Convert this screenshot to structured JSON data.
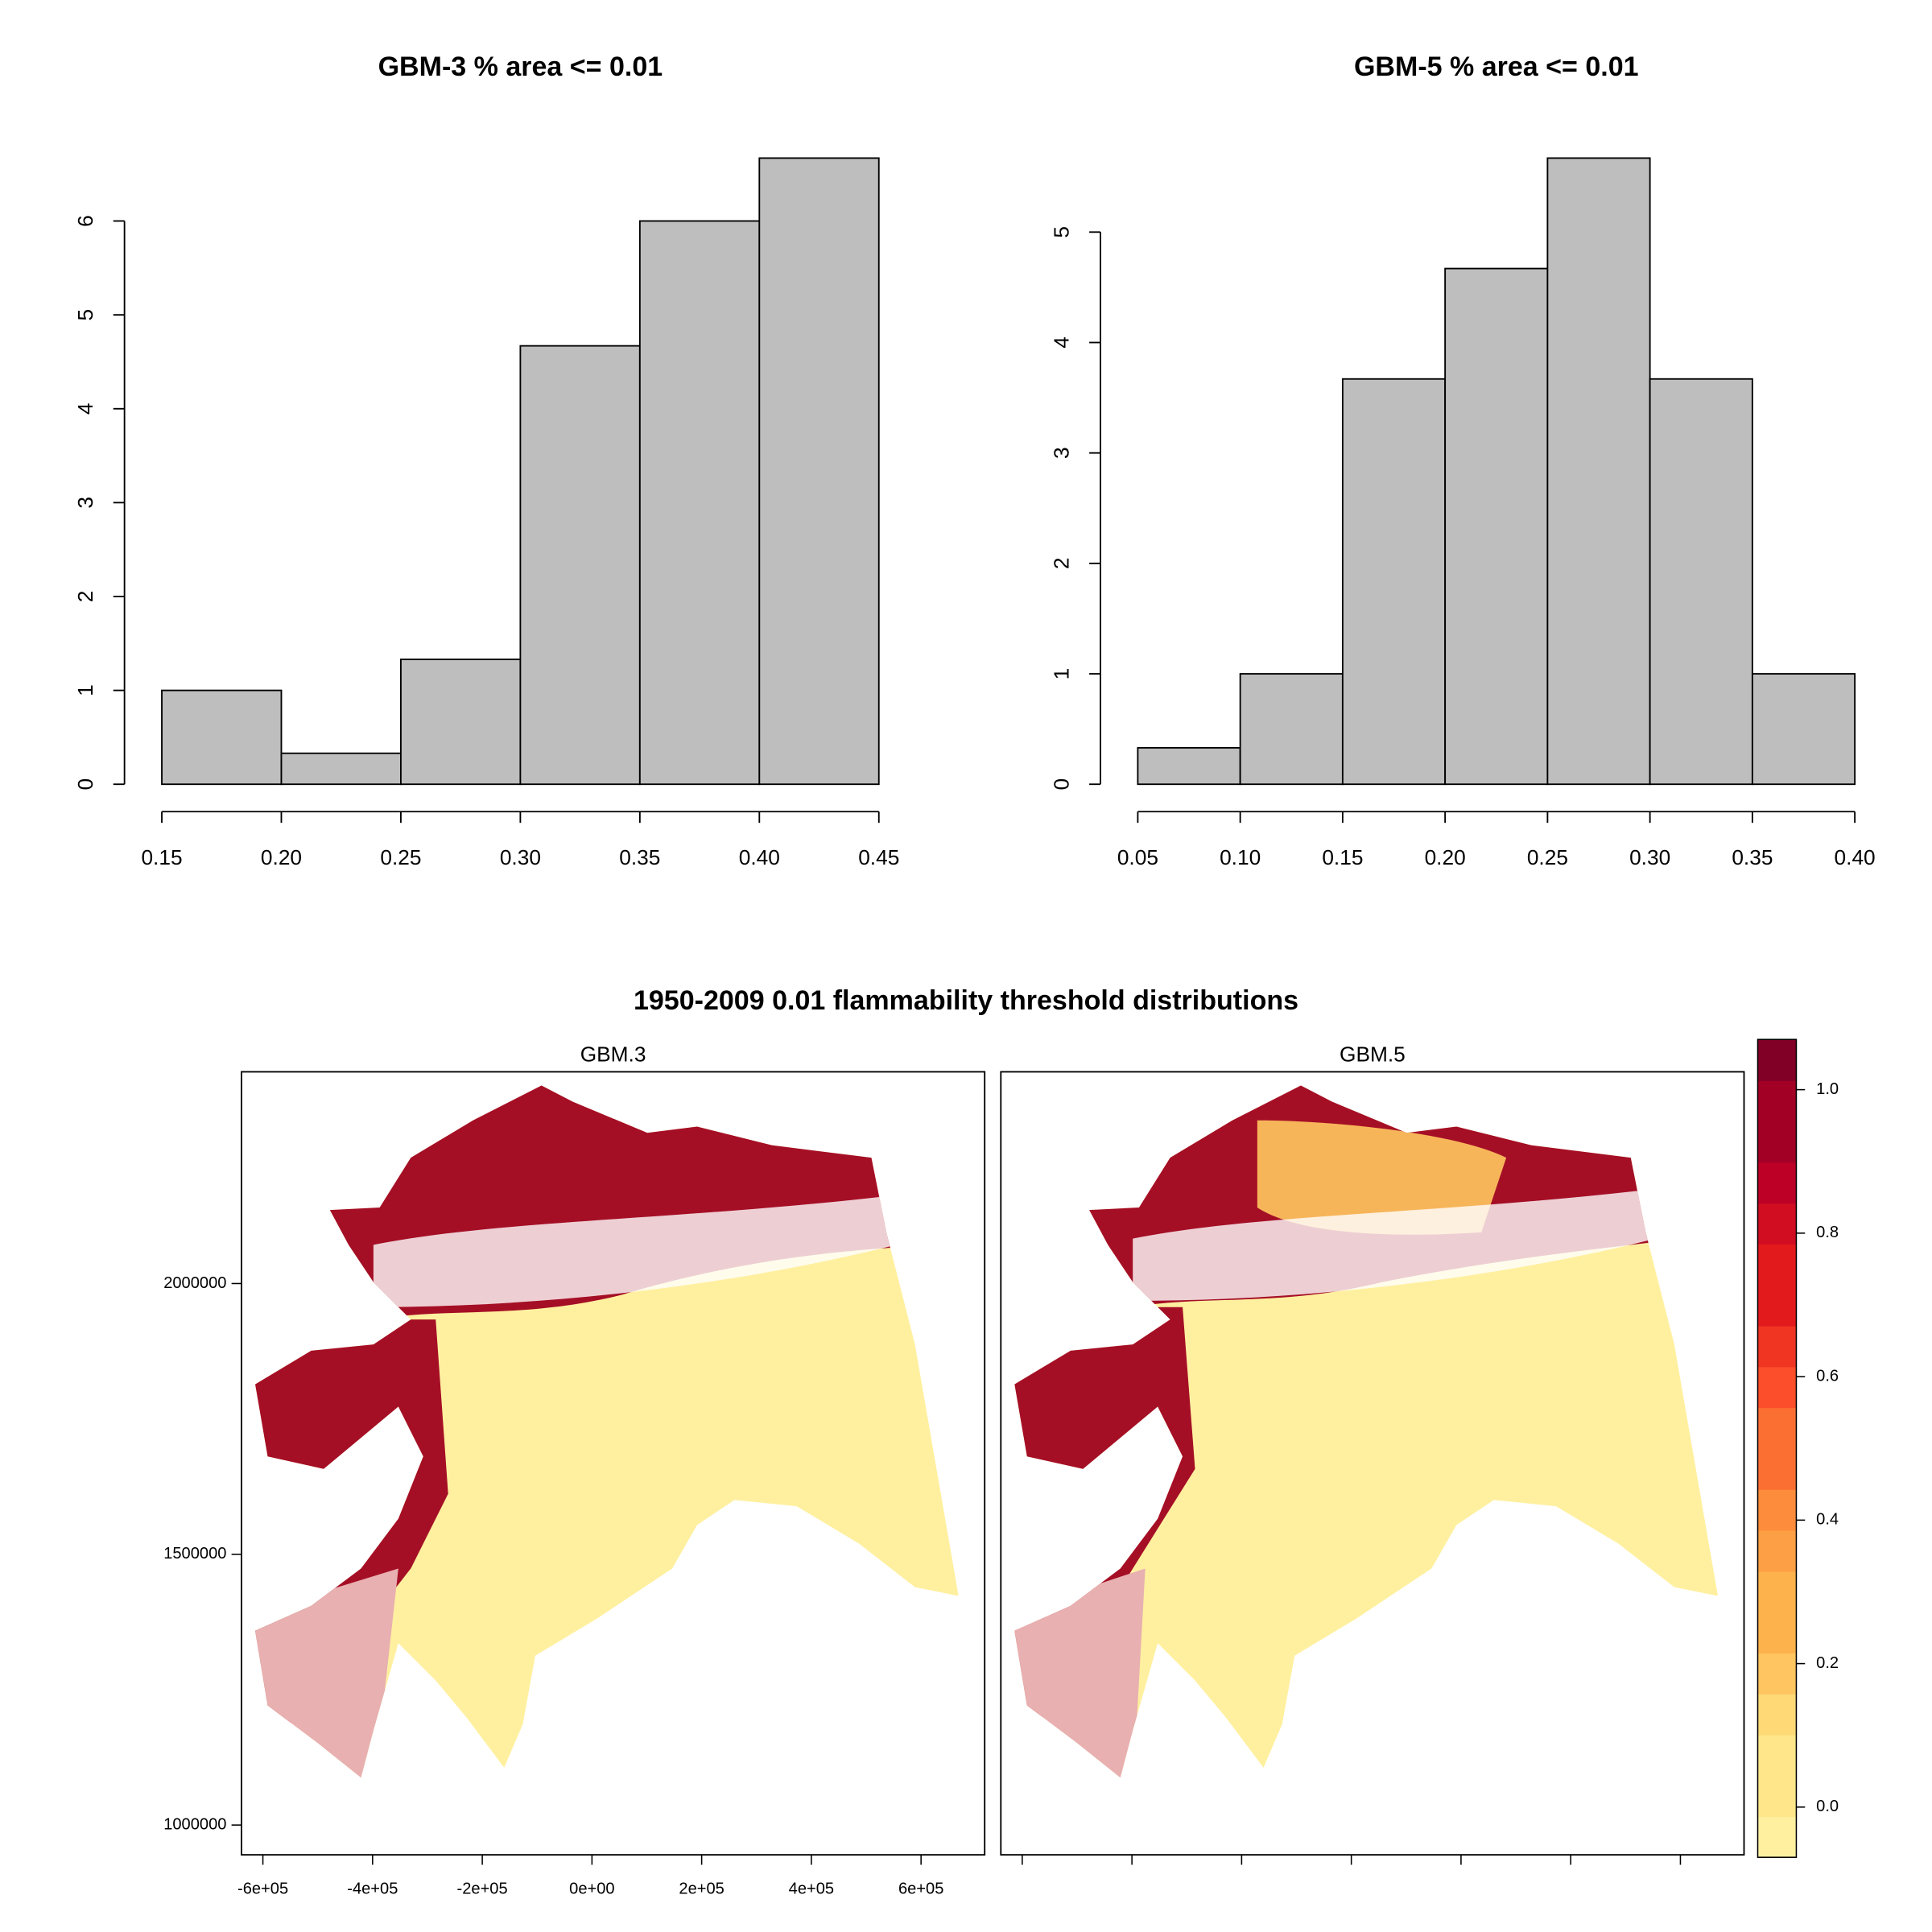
{
  "chart_data": [
    {
      "type": "histogram",
      "title": "GBM-3 % area <= 0.01",
      "bins": [
        0.15,
        0.2,
        0.25,
        0.3,
        0.35,
        0.4,
        0.45
      ],
      "values": [
        1,
        0.33,
        1.33,
        4.67,
        6,
        6.67
      ],
      "color": "#bebebe",
      "xlim": [
        0.15,
        0.45
      ],
      "ylim": [
        0,
        6.67
      ],
      "xticks": [
        0.15,
        {
          "value": 0.2,
          "label": "0.20"
        },
        0.25,
        {
          "value": 0.3,
          "label": "0.30"
        },
        0.35,
        {
          "value": 0.4,
          "label": "0.40"
        },
        0.45
      ],
      "yticks": [
        0,
        1,
        2,
        3,
        4,
        5,
        6
      ]
    },
    {
      "type": "histogram",
      "title": "GBM-5 % area <= 0.01",
      "bins": [
        0.05,
        0.1,
        0.15,
        0.2,
        0.25,
        0.3,
        0.35,
        0.4
      ],
      "values": [
        0.33,
        1,
        3.67,
        4.67,
        5.67,
        3.67,
        1
      ],
      "color": "#bebebe",
      "xlim": [
        0.05,
        0.4
      ],
      "ylim": [
        0,
        5.67
      ],
      "xticks": [
        0.05,
        {
          "value": 0.1,
          "label": "0.10"
        },
        0.15,
        {
          "value": 0.2,
          "label": "0.20"
        },
        0.25,
        {
          "value": 0.3,
          "label": "0.30"
        },
        0.35,
        {
          "value": 0.4,
          "label": "0.40"
        }
      ],
      "yticks": [
        0,
        1,
        2,
        3,
        4,
        5
      ]
    },
    {
      "type": "map",
      "title": "1950-2009 0.01 flammability threshold distributions",
      "panels": [
        "GBM.3",
        "GBM.5"
      ],
      "xlim": [
        -639000,
        716000
      ],
      "ylim": [
        945000,
        2391000
      ],
      "xticks": [
        {
          "value": -600000,
          "label": "-6e+05"
        },
        {
          "value": -400000,
          "label": "-4e+05"
        },
        {
          "value": -200000,
          "label": "-2e+05"
        },
        {
          "value": 0,
          "label": "0e+00"
        },
        {
          "value": 200000,
          "label": "2e+05"
        },
        {
          "value": 400000,
          "label": "4e+05"
        },
        {
          "value": 600000,
          "label": "6e+05"
        }
      ],
      "yticks": [
        1000000,
        1500000,
        2000000
      ],
      "zlim": [
        -0.07,
        1.07
      ],
      "zticks": [
        {
          "value": 0,
          "label": "0.0"
        },
        0.2,
        0.4,
        0.6,
        0.8,
        {
          "value": 1,
          "label": "1.0"
        }
      ]
    }
  ]
}
